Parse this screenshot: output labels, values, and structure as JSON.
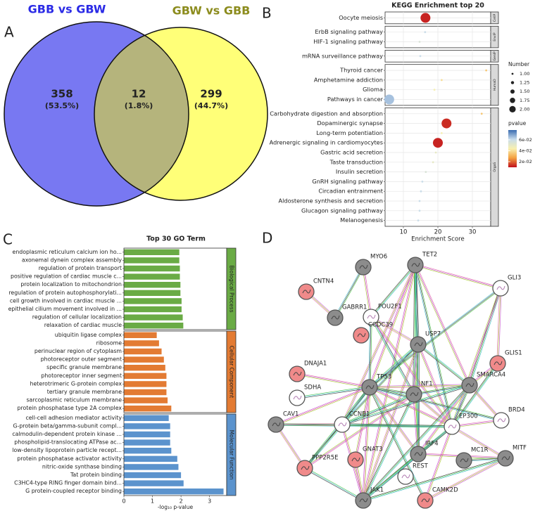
{
  "chart_data": [
    {
      "type": "venn",
      "panel_label": "A",
      "sets": [
        {
          "name": "GBB vs GBW",
          "color": "#7878f2",
          "title_color": "#2b2be6"
        },
        {
          "name": "GBW vs GBB",
          "color": "#ffff78",
          "title_color": "#8c8c1e"
        }
      ],
      "overlap_color": "#b5b47c",
      "values": [
        358,
        12,
        299
      ],
      "percent_labels": [
        "(53.5%)",
        "(1.8%)",
        "(44.7%)"
      ]
    },
    {
      "type": "dot",
      "panel_label": "B",
      "title": "KEGG Enrichment top 20",
      "xlabel": "Enrichment Score",
      "xlim": [
        4.7,
        35.3
      ],
      "xticks": [
        10,
        20,
        30
      ],
      "grid": true,
      "groups": [
        {
          "name": "CellP",
          "categories": [
            "Oocyte meiosis"
          ],
          "values": [
            16.4
          ],
          "sizes": [
            2
          ],
          "pvalues": [
            0.012
          ]
        },
        {
          "name": "EnvIP",
          "categories": [
            "ErbB signaling pathway",
            "HIF-1 signaling pathway"
          ],
          "values": [
            16.3,
            14.7
          ],
          "sizes": [
            1,
            1
          ],
          "pvalues": [
            0.06,
            0.055
          ]
        },
        {
          "name": "GenIP",
          "categories": [
            "mRNA surveillance pathway"
          ],
          "values": [
            14.9
          ],
          "sizes": [
            1
          ],
          "pvalues": [
            0.06
          ]
        },
        {
          "name": "HumaD",
          "categories": [
            "Thyroid cancer",
            "Amphetamine addiction",
            "Glioma",
            "Pathways in cancer"
          ],
          "values": [
            34.0,
            21.1,
            19.0,
            5.9
          ],
          "sizes": [
            1,
            1,
            1,
            2
          ],
          "pvalues": [
            0.035,
            0.04,
            0.045,
            0.065
          ]
        },
        {
          "name": "OrgaS",
          "categories": [
            "Carbohydrate digestion and absorption",
            "Dopaminergic synapse",
            "Long-term potentiation",
            "Adrenergic signaling in cardiomyocytes",
            "Gastric acid secretion",
            "Taste transduction",
            "Insulin secretion",
            "GnRH signaling pathway",
            "Circadian entrainment",
            "Aldosterone synthesis and secretion",
            "Glucagon signaling pathway",
            "Melanogenesis"
          ],
          "values": [
            32.7,
            22.5,
            21.1,
            20.0,
            19.4,
            18.6,
            16.5,
            15.5,
            15.1,
            14.7,
            14.7,
            14.3
          ],
          "sizes": [
            1,
            2,
            1,
            2,
            1,
            1,
            1,
            1,
            1,
            1,
            1,
            1
          ],
          "pvalues": [
            0.035,
            0.013,
            0.045,
            0.012,
            0.05,
            0.05,
            0.055,
            0.06,
            0.06,
            0.06,
            0.06,
            0.06
          ]
        }
      ],
      "size_title": "Number",
      "size_legend": [
        {
          "value": 1,
          "label": "1.00"
        },
        {
          "value": 1.25,
          "label": "1.25"
        },
        {
          "value": 1.5,
          "label": "1.50"
        },
        {
          "value": 1.75,
          "label": "1.75"
        },
        {
          "value": 2,
          "label": "2.00"
        }
      ],
      "color_title": "pvalue",
      "clim": [
        0.0097,
        0.078
      ],
      "color_ticks": [
        {
          "value": 0.06,
          "label": "6e-02"
        },
        {
          "value": 0.04,
          "label": "4e-02"
        },
        {
          "value": 0.02,
          "label": "2e-02"
        }
      ],
      "colormap": [
        "#c0101c",
        "#f4a040",
        "#f8f0b0",
        "#c8dcec",
        "#3b6cb0"
      ]
    },
    {
      "type": "bar",
      "panel_label": "C",
      "title": "Top 30 GO Term",
      "xlabel": "-log₁₀ p-value",
      "xlim": [
        0,
        3.6
      ],
      "xticks": [
        0,
        1,
        2,
        3
      ],
      "groups": [
        {
          "name": "Biological Process",
          "color": "#6aab45",
          "categories": [
            "endoplasmic reticulum calcium ion ho...",
            "axonemal dynein complex assembly",
            "regulation of protein transport",
            "positive regulation of cardiac muscle c...",
            "protein localization to mitochondrion",
            "regulation of protein autophosphorylati...",
            "cell growth involved in cardiac muscle ...",
            "epithelial cilium movement involved in ...",
            "regulation of cellular localization",
            "relaxation of cardiac muscle"
          ],
          "values": [
            1.94,
            1.94,
            1.96,
            1.96,
            1.98,
            1.98,
            2.02,
            2.02,
            2.06,
            2.08
          ]
        },
        {
          "name": "Cellular Component",
          "color": "#e37b33",
          "categories": [
            "ubiquitin ligase complex",
            "ribosome",
            "perinuclear region of cytoplasm",
            "photoreceptor outer segment",
            "specific granule membrane",
            "photoreceptor inner segment",
            "heterotrimeric G-protein complex",
            "tertiary granule membrane",
            "sarcoplasmic reticulum membrane",
            "protein phosphatase type 2A complex"
          ],
          "values": [
            1.15,
            1.23,
            1.32,
            1.4,
            1.45,
            1.49,
            1.49,
            1.49,
            1.53,
            1.66
          ]
        },
        {
          "name": "Molecular Function",
          "color": "#5b93cd",
          "categories": [
            "cell-cell adhesion mediator activity",
            "G-protein beta/gamma-subunit compl...",
            "calmodulin-dependent protein kinase ...",
            "phospholipid-translocating ATPase ac...",
            "low-density lipoprotein particle recept...",
            "protein phosphatase activator activity",
            "nitric-oxide synthase binding",
            "Tat protein binding",
            "C3HC4-type RING finger domain bind...",
            "G protein-coupled receptor binding"
          ],
          "values": [
            1.57,
            1.62,
            1.62,
            1.62,
            1.66,
            1.87,
            1.91,
            2.0,
            2.09,
            3.49
          ]
        }
      ]
    },
    {
      "type": "network",
      "panel_label": "D",
      "nodes": [
        {
          "label": "MYO6",
          "color": "#8c8c8c"
        },
        {
          "label": "TET2",
          "color": "#8c8c8c"
        },
        {
          "label": "CNTN4",
          "color": "#f08a8a"
        },
        {
          "label": "POU2F1",
          "color": "#ffffff"
        },
        {
          "label": "GLI3",
          "color": "#ffffff"
        },
        {
          "label": "GABRR1",
          "color": "#8c8c8c"
        },
        {
          "label": "CCDC39",
          "color": "#f08a8a"
        },
        {
          "label": "USP7",
          "color": "#8c8c8c"
        },
        {
          "label": "GLIS1",
          "color": "#f08a8a"
        },
        {
          "label": "DNAJA1",
          "color": "#f08a8a"
        },
        {
          "label": "TP53",
          "color": "#8c8c8c"
        },
        {
          "label": "NF1",
          "color": "#8c8c8c"
        },
        {
          "label": "SMARCA4",
          "color": "#8c8c8c"
        },
        {
          "label": "SDHA",
          "color": "#ffffff"
        },
        {
          "label": "CAV1",
          "color": "#8c8c8c"
        },
        {
          "label": "CCNB1",
          "color": "#ffffff"
        },
        {
          "label": "EP300",
          "color": "#ffffff"
        },
        {
          "label": "BRD4",
          "color": "#ffffff"
        },
        {
          "label": "IRF4",
          "color": "#8c8c8c"
        },
        {
          "label": "GNAT3",
          "color": "#f08a8a"
        },
        {
          "label": "MC1R",
          "color": "#8c8c8c"
        },
        {
          "label": "MITF",
          "color": "#8c8c8c"
        },
        {
          "label": "PPP2R5E",
          "color": "#f08a8a"
        },
        {
          "label": "REST",
          "color": "#ffffff"
        },
        {
          "label": "JAK1",
          "color": "#8c8c8c"
        },
        {
          "label": "CAMK2D",
          "color": "#f08a8a"
        }
      ]
    }
  ]
}
